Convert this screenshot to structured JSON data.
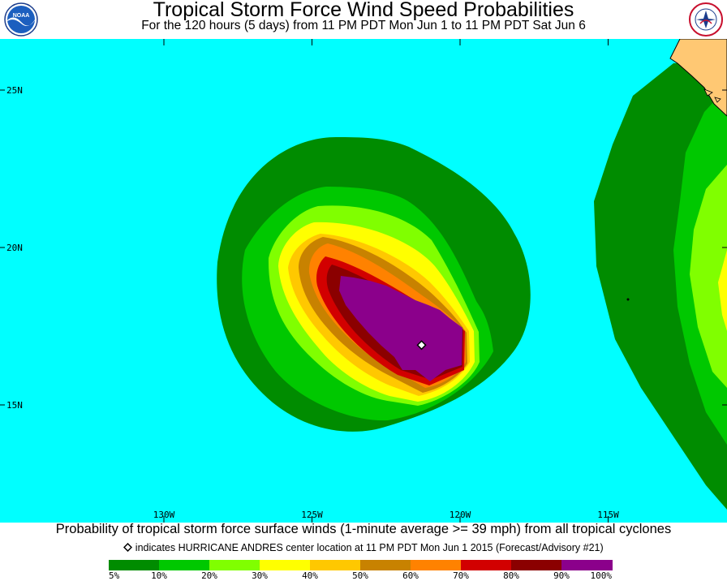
{
  "header": {
    "title": "Tropical Storm Force Wind Speed Probabilities",
    "subtitle": "For the 120 hours (5 days) from 11 PM PDT Mon Jun 1 to 11 PM PDT Sat Jun 6",
    "left_logo_text": "NOAA",
    "right_logo_text": "NATIONAL WEATHER SERVICE"
  },
  "map": {
    "ocean_color": "#00ffff",
    "land_color": "#ffc873",
    "lat_labels": [
      "25N",
      "20N",
      "15N"
    ],
    "lon_labels": [
      "130W",
      "125W",
      "120W",
      "115W"
    ],
    "storm_center": {
      "lat": 16.9,
      "lon": 121.3
    }
  },
  "caption": {
    "probability_text": "Probability of tropical storm force surface winds (1-minute average >= 39 mph) from all tropical cyclones",
    "center_text": "indicates HURRICANE ANDRES center location at 11 PM PDT Mon Jun 1 2015 (Forecast/Advisory #21)"
  },
  "legend": {
    "colors": [
      "#008c00",
      "#00c800",
      "#80ff00",
      "#ffff00",
      "#ffc800",
      "#c88200",
      "#ff8200",
      "#d20000",
      "#8b0000",
      "#8b008b"
    ],
    "labels": [
      "5%",
      "10%",
      "20%",
      "30%",
      "40%",
      "50%",
      "60%",
      "70%",
      "80%",
      "90%",
      "100%"
    ]
  }
}
